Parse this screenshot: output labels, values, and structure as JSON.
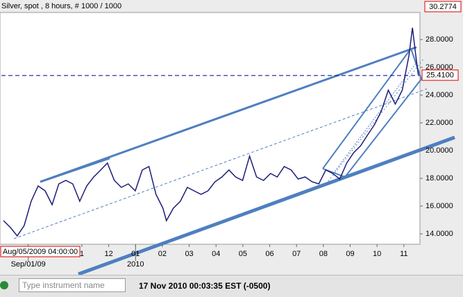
{
  "chart_data": {
    "type": "line",
    "title": "Silver, spot , 8 hours, # 1000 / 1000",
    "scale_top_label": "30.2774",
    "current_value": 25.41,
    "current_label": "25.4100",
    "cursor_time_label": "Aug/05/2009 04:00:00",
    "x": [
      0.08,
      0.34,
      0.59,
      0.85,
      1.11,
      1.37,
      1.63,
      1.89,
      2.14,
      2.4,
      2.66,
      2.92,
      3.18,
      3.44,
      3.7,
      3.95,
      4.21,
      4.47,
      4.73,
      4.99,
      5.25,
      5.5,
      5.76,
      6.02,
      6.15,
      6.41,
      6.67,
      6.93,
      7.18,
      7.44,
      7.7,
      7.96,
      8.22,
      8.48,
      8.73,
      8.99,
      9.25,
      9.51,
      9.77,
      10.03,
      10.28,
      10.54,
      10.8,
      11.06,
      11.32,
      11.58,
      11.83,
      12.09,
      12.35,
      12.61,
      12.87,
      13.13,
      13.39,
      13.64,
      13.9,
      14.16,
      14.42,
      14.68,
      14.94,
      15.19,
      15.32,
      15.46,
      15.54
    ],
    "series": [
      {
        "name": "Silver",
        "color": "#1c1c78",
        "values": [
          14.95,
          14.45,
          13.85,
          14.6,
          16.35,
          17.45,
          17.1,
          16.1,
          17.6,
          17.85,
          17.6,
          16.35,
          17.45,
          18.1,
          18.6,
          19.1,
          17.85,
          17.35,
          17.6,
          17.1,
          18.6,
          18.85,
          16.85,
          15.85,
          14.95,
          15.85,
          16.35,
          17.35,
          17.1,
          16.85,
          17.1,
          17.75,
          18.1,
          18.6,
          18.1,
          17.85,
          19.6,
          18.1,
          17.85,
          18.35,
          18.1,
          18.85,
          18.6,
          17.95,
          18.1,
          17.75,
          17.6,
          18.6,
          18.35,
          17.95,
          19.1,
          19.85,
          20.35,
          21.1,
          21.85,
          22.85,
          24.35,
          23.35,
          24.35,
          26.85,
          28.85,
          26.6,
          25.45
        ]
      }
    ],
    "xlim": [
      0,
      15.6
    ],
    "xticks": [
      {
        "value": 3,
        "label": "1"
      },
      {
        "value": 4,
        "label": "12"
      },
      {
        "value": 5,
        "label": "01"
      },
      {
        "value": 6,
        "label": "02"
      },
      {
        "value": 7,
        "label": "03"
      },
      {
        "value": 8,
        "label": "04"
      },
      {
        "value": 9,
        "label": "05"
      },
      {
        "value": 10,
        "label": "06"
      },
      {
        "value": 11,
        "label": "07"
      },
      {
        "value": 12,
        "label": "08"
      },
      {
        "value": 13,
        "label": "09"
      },
      {
        "value": 14,
        "label": "10"
      },
      {
        "value": 15,
        "label": "11"
      }
    ],
    "xticks_major": [
      {
        "value": 1,
        "label": "Sep/01/09"
      },
      {
        "value": 5,
        "label": "2010"
      }
    ],
    "ylim": [
      13.25,
      29.95
    ],
    "yticks": [
      {
        "value": 14,
        "label": "14.0000"
      },
      {
        "value": 16,
        "label": "16.0000"
      },
      {
        "value": 18,
        "label": "18.0000"
      },
      {
        "value": 20,
        "label": "20.0000"
      },
      {
        "value": 22,
        "label": "22.0000"
      },
      {
        "value": 24,
        "label": "24.0000"
      },
      {
        "value": 26,
        "label": "26.0000"
      },
      {
        "value": 28,
        "label": "28.0000"
      }
    ]
  },
  "toolbar": {
    "search_placeholder": "Type instrument name",
    "clock": "17 Nov 2010 00:03:35  EST (-0500)"
  }
}
